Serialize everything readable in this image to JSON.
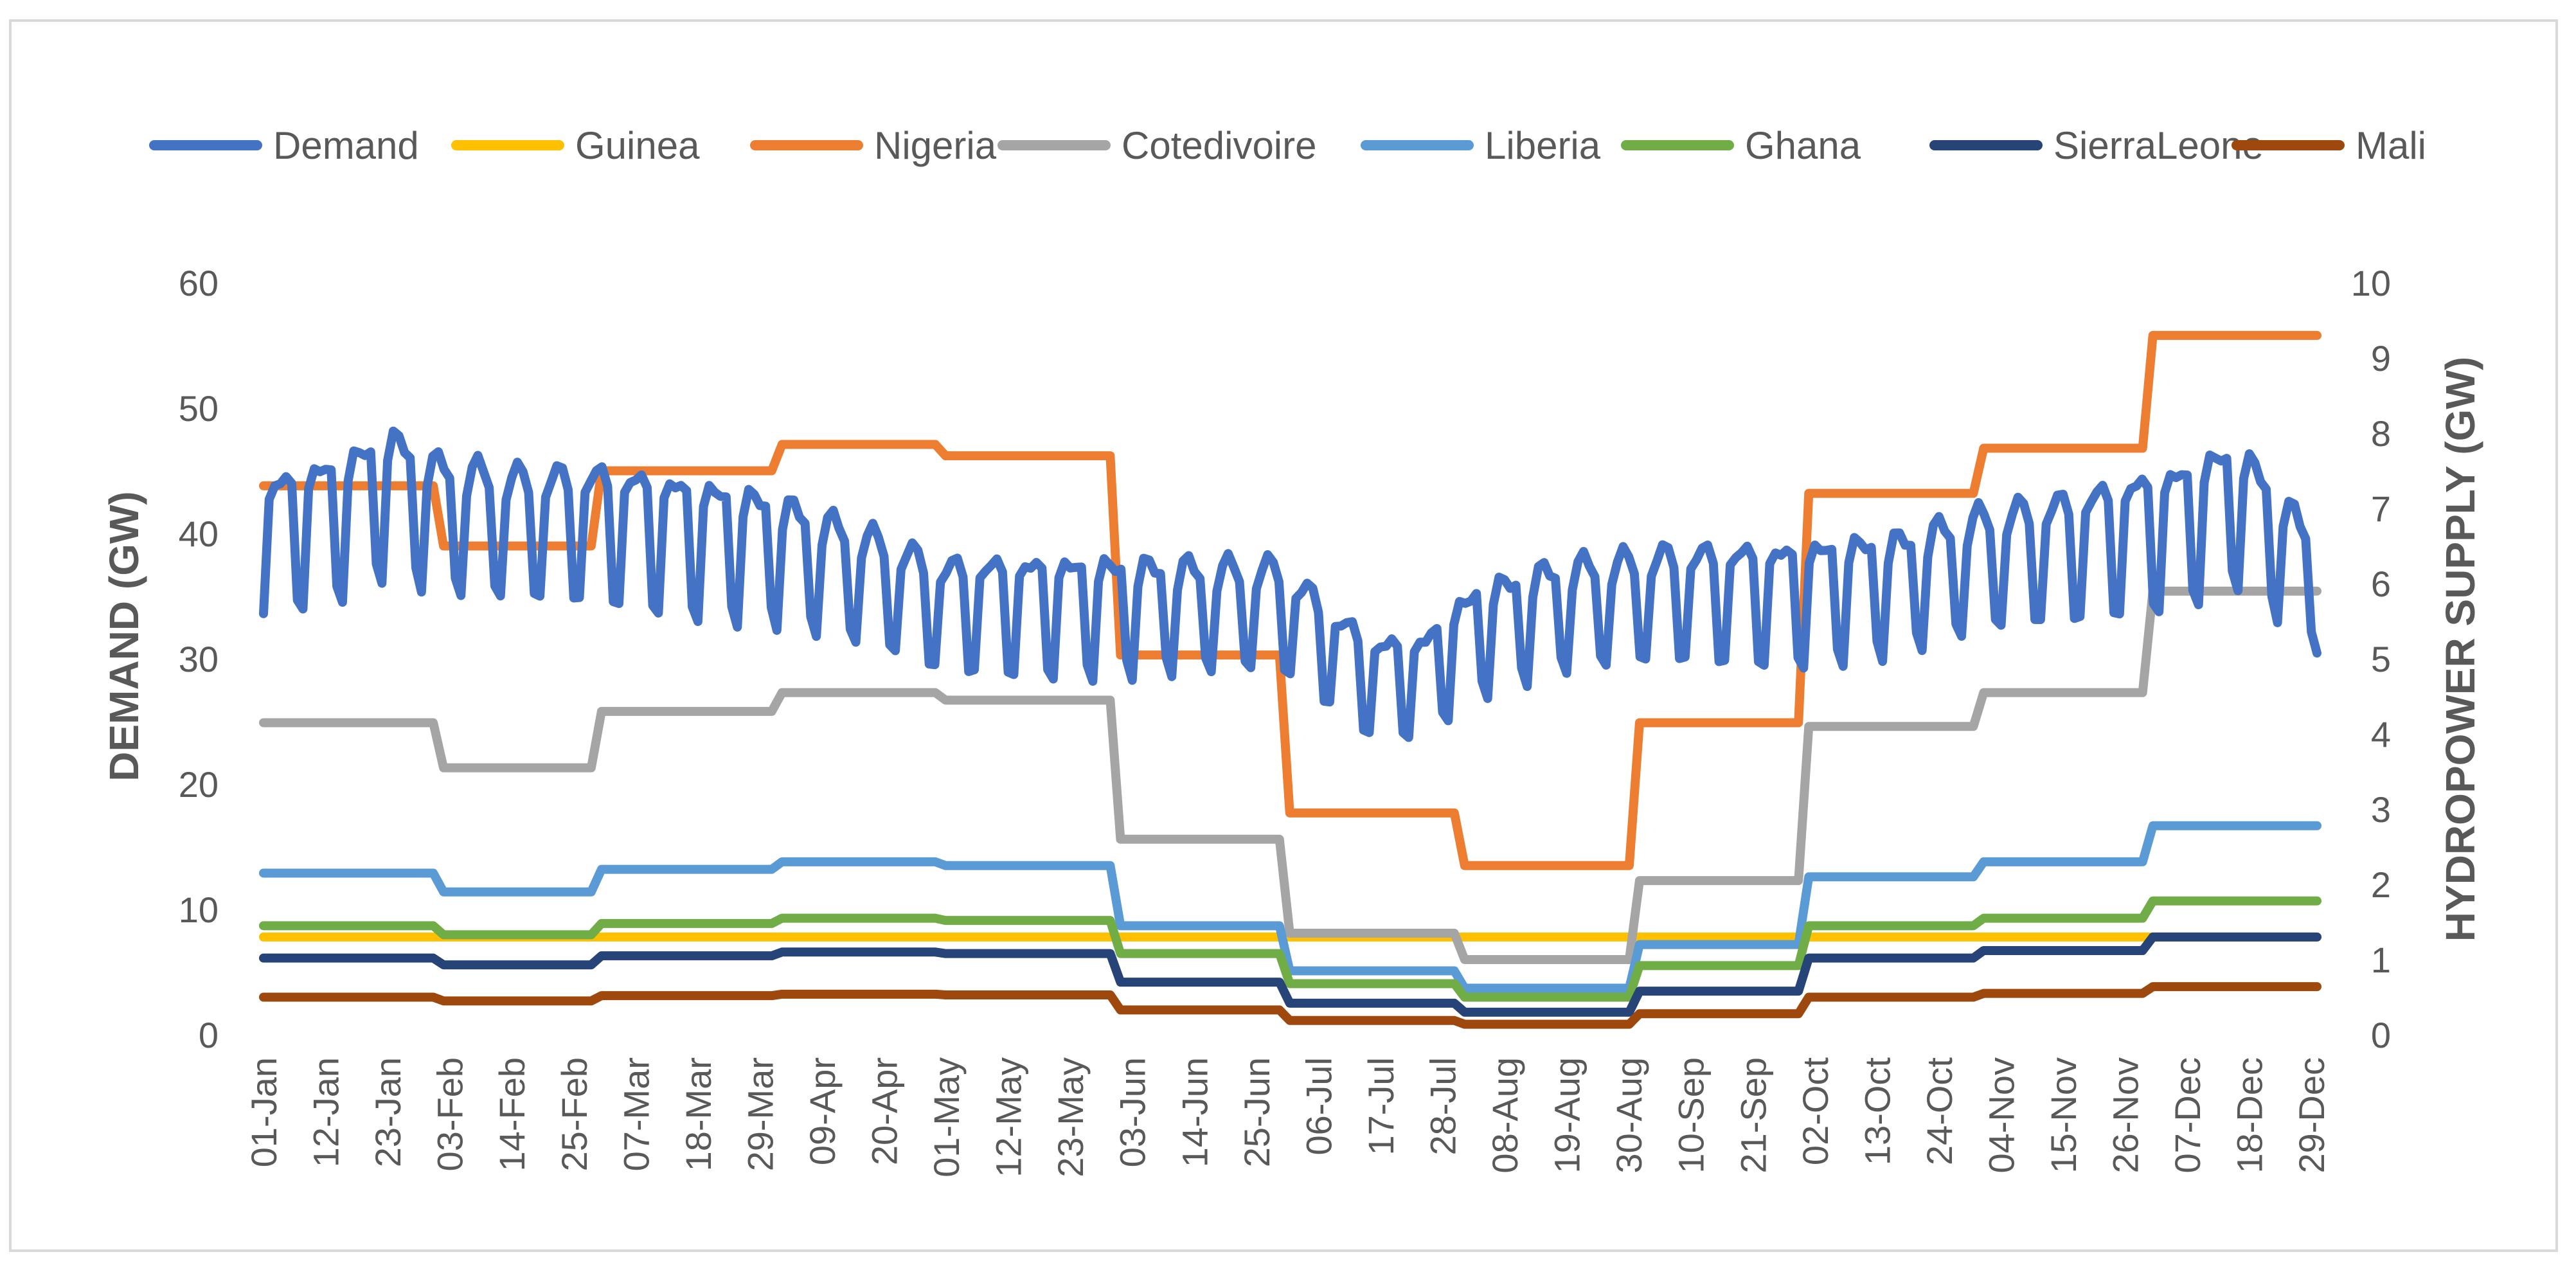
{
  "chart_data": {
    "type": "line",
    "title": "",
    "ylabel": "DEMAND (GW)",
    "y2label": "HYDROPOWER SUPPLY (GW)",
    "ylim": [
      0,
      60
    ],
    "y2lim": [
      0,
      10
    ],
    "yticks": [
      0,
      10,
      20,
      30,
      40,
      50,
      60
    ],
    "y2ticks": [
      0,
      1,
      2,
      3,
      4,
      5,
      6,
      7,
      8,
      9,
      10
    ],
    "legend_position": "top",
    "x_tick_labels": [
      "01-Jan",
      "12-Jan",
      "23-Jan",
      "03-Feb",
      "14-Feb",
      "25-Feb",
      "07-Mar",
      "18-Mar",
      "29-Mar",
      "09-Apr",
      "20-Apr",
      "01-May",
      "12-May",
      "23-May",
      "03-Jun",
      "14-Jun",
      "25-Jun",
      "06-Jul",
      "17-Jul",
      "28-Jul",
      "08-Aug",
      "19-Aug",
      "30-Aug",
      "10-Sep",
      "21-Sep",
      "02-Oct",
      "13-Oct",
      "24-Oct",
      "04-Nov",
      "15-Nov",
      "26-Nov",
      "07-Dec",
      "18-Dec",
      "29-Dec"
    ],
    "x_days": 365,
    "demand": {
      "name": "Demand",
      "color": "#4472C4",
      "axis": "left",
      "weekly_profile": [
        0.8,
        1.0,
        1.04,
        1.05,
        1.04,
        1.02,
        0.82
      ],
      "anchors_day": [
        0,
        15,
        22,
        30,
        45,
        60,
        90,
        110,
        120,
        140,
        160,
        180,
        196,
        205,
        215,
        230,
        250,
        270,
        290,
        305,
        320,
        340,
        350,
        364
      ],
      "anchors_gw": [
        42,
        44,
        46,
        44,
        43,
        43,
        41,
        38,
        36,
        36,
        36,
        36,
        30,
        30,
        34,
        36,
        37,
        37,
        38,
        40,
        41,
        43,
        45,
        38
      ]
    },
    "series": [
      {
        "name": "Guinea",
        "color": "#FFC000",
        "axis": "right",
        "steps": [
          [
            0,
            1.3
          ]
        ]
      },
      {
        "name": "Nigeria",
        "color": "#ED7D31",
        "axis": "right",
        "steps": [
          [
            0,
            7.3
          ],
          [
            31,
            6.5
          ],
          [
            59,
            7.5
          ],
          [
            91,
            7.85
          ],
          [
            120,
            7.7
          ],
          [
            151,
            5.05
          ],
          [
            181,
            2.95
          ],
          [
            212,
            2.25
          ],
          [
            243,
            4.15
          ],
          [
            273,
            7.2
          ],
          [
            304,
            7.8
          ],
          [
            334,
            9.3
          ]
        ]
      },
      {
        "name": "Cotedivoire",
        "color": "#A5A5A5",
        "axis": "right",
        "steps": [
          [
            0,
            4.15
          ],
          [
            31,
            3.55
          ],
          [
            59,
            4.3
          ],
          [
            91,
            4.55
          ],
          [
            120,
            4.45
          ],
          [
            151,
            2.6
          ],
          [
            181,
            1.35
          ],
          [
            212,
            1.0
          ],
          [
            243,
            2.05
          ],
          [
            273,
            4.1
          ],
          [
            304,
            4.55
          ],
          [
            334,
            5.9
          ]
        ]
      },
      {
        "name": "Liberia",
        "color": "#5B9BD5",
        "axis": "right",
        "steps": [
          [
            0,
            2.15
          ],
          [
            31,
            1.9
          ],
          [
            59,
            2.2
          ],
          [
            91,
            2.3
          ],
          [
            120,
            2.25
          ],
          [
            151,
            1.45
          ],
          [
            181,
            0.85
          ],
          [
            212,
            0.62
          ],
          [
            243,
            1.2
          ],
          [
            273,
            2.1
          ],
          [
            304,
            2.3
          ],
          [
            334,
            2.78
          ]
        ]
      },
      {
        "name": "Ghana",
        "color": "#70AD47",
        "axis": "right",
        "steps": [
          [
            0,
            1.45
          ],
          [
            31,
            1.33
          ],
          [
            59,
            1.48
          ],
          [
            91,
            1.55
          ],
          [
            120,
            1.52
          ],
          [
            151,
            1.08
          ],
          [
            181,
            0.68
          ],
          [
            212,
            0.5
          ],
          [
            243,
            0.92
          ],
          [
            273,
            1.45
          ],
          [
            304,
            1.55
          ],
          [
            334,
            1.78
          ]
        ]
      },
      {
        "name": "SierraLeone",
        "color": "#264478",
        "axis": "right",
        "steps": [
          [
            0,
            1.02
          ],
          [
            31,
            0.93
          ],
          [
            59,
            1.05
          ],
          [
            91,
            1.1
          ],
          [
            120,
            1.08
          ],
          [
            151,
            0.7
          ],
          [
            181,
            0.42
          ],
          [
            212,
            0.3
          ],
          [
            243,
            0.58
          ],
          [
            273,
            1.02
          ],
          [
            304,
            1.12
          ],
          [
            334,
            1.3
          ]
        ]
      },
      {
        "name": "Mali",
        "color": "#9E480E",
        "axis": "right",
        "steps": [
          [
            0,
            0.5
          ],
          [
            31,
            0.45
          ],
          [
            59,
            0.52
          ],
          [
            91,
            0.54
          ],
          [
            120,
            0.53
          ],
          [
            151,
            0.33
          ],
          [
            181,
            0.19
          ],
          [
            212,
            0.14
          ],
          [
            243,
            0.28
          ],
          [
            273,
            0.5
          ],
          [
            304,
            0.55
          ],
          [
            334,
            0.64
          ]
        ]
      }
    ]
  }
}
